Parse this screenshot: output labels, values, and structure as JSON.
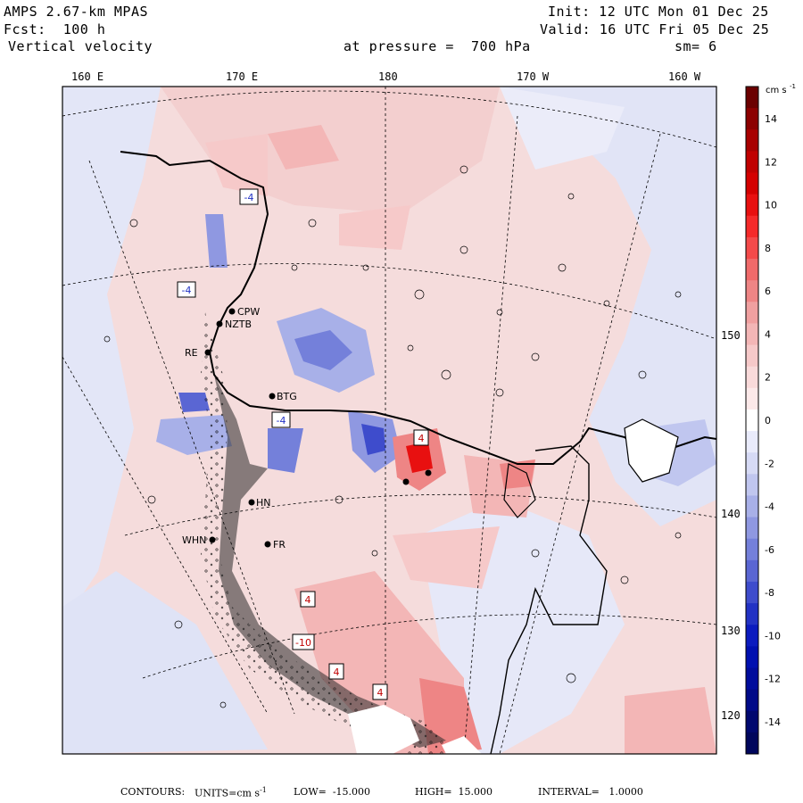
{
  "header": {
    "model": "AMPS 2.67-km MPAS",
    "forecast": "Fcst:  100 h",
    "field": "Vertical velocity",
    "init": "Init: 12 UTC Mon 01 Dec 25",
    "valid": "Valid: 16 UTC Fri 05 Dec 25",
    "pressure": "at pressure =  700 hPa",
    "smoothing": "sm= 6"
  },
  "longitude_labels": [
    "160 E",
    "170 E",
    "180",
    "170 W",
    "160 W"
  ],
  "latitude_labels": [
    "150 W",
    "140 W",
    "130 W",
    "120 W"
  ],
  "stations": [
    "CPW",
    "NZTB",
    "RE",
    "BTG",
    "HN",
    "WHN",
    "FR"
  ],
  "extrema_markers": [
    {
      "text": "-4",
      "kind": "min"
    },
    {
      "text": "-4",
      "kind": "min"
    },
    {
      "text": "-4",
      "kind": "min"
    },
    {
      "text": "4",
      "kind": "max"
    },
    {
      "text": "4",
      "kind": "max"
    },
    {
      "text": "-10",
      "kind": "min"
    },
    {
      "text": "4",
      "kind": "max"
    },
    {
      "text": "4",
      "kind": "max"
    }
  ],
  "colorbar": {
    "units": "cm s",
    "units_exp": "-1",
    "levels": [
      {
        "label": "",
        "color": "#6b0000"
      },
      {
        "label": "14",
        "color": "#8c0000"
      },
      {
        "label": "",
        "color": "#a80000"
      },
      {
        "label": "12",
        "color": "#c00000"
      },
      {
        "label": "",
        "color": "#d40000"
      },
      {
        "label": "10",
        "color": "#e81010"
      },
      {
        "label": "",
        "color": "#f52a2a"
      },
      {
        "label": "8",
        "color": "#f44a4a"
      },
      {
        "label": "",
        "color": "#f06a6a"
      },
      {
        "label": "6",
        "color": "#ee8585"
      },
      {
        "label": "",
        "color": "#f0a0a0"
      },
      {
        "label": "4",
        "color": "#f3b6b6"
      },
      {
        "label": "",
        "color": "#f6c9c9"
      },
      {
        "label": "2",
        "color": "#f9dada"
      },
      {
        "label": "",
        "color": "#fce9e9"
      },
      {
        "label": "0",
        "color": "#ffffff"
      },
      {
        "label": "",
        "color": "#e9ebfb"
      },
      {
        "label": "-2",
        "color": "#d6daf5"
      },
      {
        "label": "",
        "color": "#c0c6ef"
      },
      {
        "label": "-4",
        "color": "#a8b0e8"
      },
      {
        "label": "",
        "color": "#8f98e1"
      },
      {
        "label": "-6",
        "color": "#7480da"
      },
      {
        "label": "",
        "color": "#5a66d3"
      },
      {
        "label": "-8",
        "color": "#3e4ccc"
      },
      {
        "label": "",
        "color": "#2232c4"
      },
      {
        "label": "-10",
        "color": "#0b1bbf"
      },
      {
        "label": "",
        "color": "#0010b0"
      },
      {
        "label": "-12",
        "color": "#000c9c"
      },
      {
        "label": "",
        "color": "#000a88"
      },
      {
        "label": "-14",
        "color": "#00086f"
      },
      {
        "label": "",
        "color": "#00065c"
      }
    ]
  },
  "footer": {
    "contours": "CONTOURS:",
    "units_label": "UNITS=cm s",
    "units_exp": "-1",
    "low": "LOW=  -15.000",
    "high": "HIGH=  15.000",
    "interval": "INTERVAL=   1.0000"
  }
}
